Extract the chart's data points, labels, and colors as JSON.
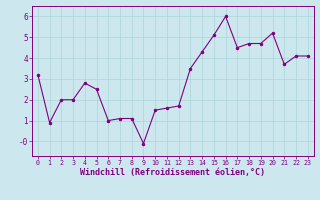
{
  "x": [
    0,
    1,
    2,
    3,
    4,
    5,
    6,
    7,
    8,
    9,
    10,
    11,
    12,
    13,
    14,
    15,
    16,
    17,
    18,
    19,
    20,
    21,
    22,
    23
  ],
  "y": [
    3.2,
    0.9,
    2.0,
    2.0,
    2.8,
    2.5,
    1.0,
    1.1,
    1.1,
    -0.1,
    1.5,
    1.6,
    1.7,
    3.5,
    4.3,
    5.1,
    6.0,
    4.5,
    4.7,
    4.7,
    5.2,
    3.7,
    4.1,
    4.1
  ],
  "line_color": "#800080",
  "marker_color": "#800080",
  "bg_color": "#cce8ee",
  "grid_color": "#aad4d8",
  "xlabel": "Windchill (Refroidissement éolien,°C)",
  "ylim": [
    -0.7,
    6.5
  ],
  "xlim": [
    -0.5,
    23.5
  ],
  "yticks": [
    0,
    1,
    2,
    3,
    4,
    5,
    6
  ],
  "ytick_labels": [
    "-0",
    "1",
    "2",
    "3",
    "4",
    "5",
    "6"
  ],
  "xticks": [
    0,
    1,
    2,
    3,
    4,
    5,
    6,
    7,
    8,
    9,
    10,
    11,
    12,
    13,
    14,
    15,
    16,
    17,
    18,
    19,
    20,
    21,
    22,
    23
  ],
  "axis_color": "#800080",
  "font_color": "#800080"
}
